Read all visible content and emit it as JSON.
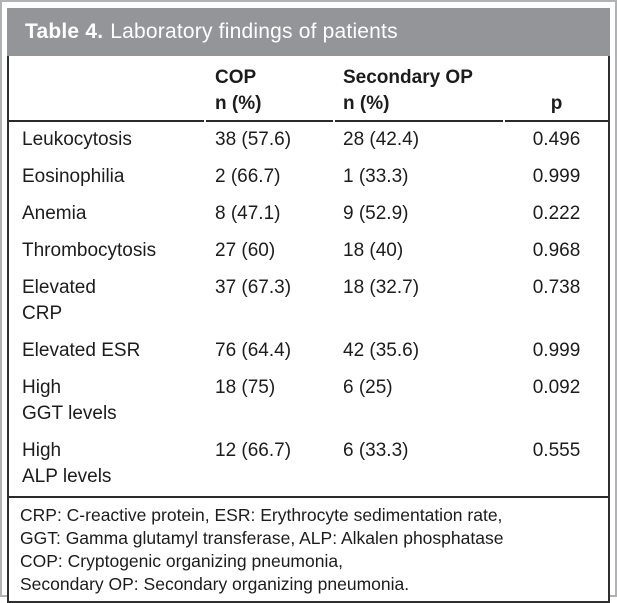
{
  "title": {
    "prefix": "Table 4.",
    "text": "Laboratory findings of patients"
  },
  "table": {
    "columns": {
      "label": "",
      "cop": "COP\nn (%)",
      "secondary": "Secondary OP\nn (%)",
      "p": "p"
    },
    "rows": [
      {
        "label": "Leukocytosis",
        "cop": "38 (57.6)",
        "secondary": "28 (42.4)",
        "p": "0.496"
      },
      {
        "label": "Eosinophilia",
        "cop": "2 (66.7)",
        "secondary": "1 (33.3)",
        "p": "0.999"
      },
      {
        "label": "Anemia",
        "cop": "8 (47.1)",
        "secondary": "9 (52.9)",
        "p": "0.222"
      },
      {
        "label": "Thrombocytosis",
        "cop": "27 (60)",
        "secondary": "18 (40)",
        "p": "0.968"
      },
      {
        "label": "Elevated\nCRP",
        "cop": "37 (67.3)",
        "secondary": "18 (32.7)",
        "p": "0.738"
      },
      {
        "label": "Elevated ESR",
        "cop": "76 (64.4)",
        "secondary": "42 (35.6)",
        "p": "0.999"
      },
      {
        "label": "High\nGGT levels",
        "cop": "18 (75)",
        "secondary": "6 (25)",
        "p": "0.092"
      },
      {
        "label": "High\nALP levels",
        "cop": "12 (66.7)",
        "secondary": "6 (33.3)",
        "p": "0.555"
      }
    ]
  },
  "footnote": {
    "lines": [
      "CRP: C-reactive protein, ESR: Erythrocyte sedimentation rate,",
      "GGT: Gamma glutamyl transferase, ALP: Alkalen phosphatase",
      "COP: Cryptogenic organizing pneumonia,",
      "Secondary OP: Secondary organizing pneumonia."
    ]
  },
  "colors": {
    "title_bar": "#949599",
    "title_text": "#ffffff",
    "rule": "#2a2a2a",
    "outer_frame": "#b0b2b4",
    "body_text": "#1c1c1c"
  }
}
